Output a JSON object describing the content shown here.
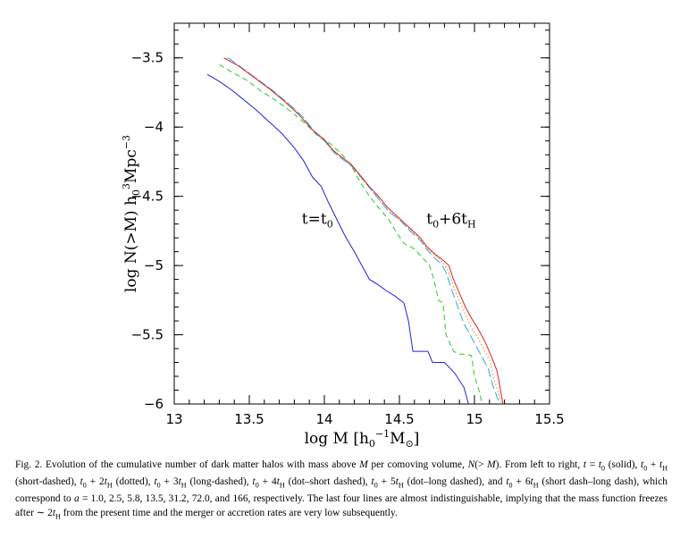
{
  "chart_data": {
    "type": "line",
    "xlabel": "log M [h0-1M⊙]",
    "ylabel": "log N(>M) h03Mpc-3",
    "xlim": [
      13,
      15.5
    ],
    "ylim": [
      -6,
      -3.25
    ],
    "x_ticks": [
      13,
      13.5,
      14,
      14.5,
      15,
      15.5
    ],
    "y_ticks": [
      -3.5,
      -4,
      -4.5,
      -5,
      -5.5,
      -6
    ],
    "x_tick_labels": [
      "13",
      "13.5",
      "14",
      "14.5",
      "15",
      "15.5"
    ],
    "y_tick_labels": [
      "−3.5",
      "−4",
      "−4.5",
      "−5",
      "−5.5",
      "−6"
    ],
    "grid": false,
    "annotations": [
      {
        "text": "t=t",
        "sub": "0",
        "at": [
          13.85,
          -4.7
        ]
      },
      {
        "text": "t",
        "sub": "0",
        "rest": "+6t",
        "sub2": "H",
        "at": [
          14.68,
          -4.7
        ]
      }
    ],
    "series": [
      {
        "color": "#2222dd",
        "style": "solid",
        "points": [
          [
            13.22,
            -3.62
          ],
          [
            13.3,
            -3.67
          ],
          [
            13.38,
            -3.73
          ],
          [
            13.46,
            -3.8
          ],
          [
            13.55,
            -3.88
          ],
          [
            13.64,
            -3.97
          ],
          [
            13.72,
            -4.05
          ],
          [
            13.8,
            -4.15
          ],
          [
            13.86,
            -4.24
          ],
          [
            13.92,
            -4.36
          ],
          [
            13.98,
            -4.43
          ],
          [
            14.03,
            -4.55
          ],
          [
            14.08,
            -4.66
          ],
          [
            14.14,
            -4.79
          ],
          [
            14.2,
            -4.9
          ],
          [
            14.26,
            -5.02
          ],
          [
            14.3,
            -5.1
          ],
          [
            14.36,
            -5.14
          ],
          [
            14.41,
            -5.18
          ],
          [
            14.47,
            -5.22
          ],
          [
            14.53,
            -5.27
          ],
          [
            14.56,
            -5.4
          ],
          [
            14.59,
            -5.62
          ],
          [
            14.65,
            -5.62
          ],
          [
            14.69,
            -5.62
          ],
          [
            14.72,
            -5.7
          ],
          [
            14.8,
            -5.7
          ],
          [
            14.87,
            -5.78
          ],
          [
            14.93,
            -5.88
          ],
          [
            14.96,
            -6.0
          ]
        ]
      },
      {
        "color": "#22cc22",
        "style": "short-dashed",
        "points": [
          [
            13.3,
            -3.55
          ],
          [
            13.38,
            -3.6
          ],
          [
            13.48,
            -3.66
          ],
          [
            13.58,
            -3.74
          ],
          [
            13.68,
            -3.81
          ],
          [
            13.78,
            -3.89
          ],
          [
            13.88,
            -3.98
          ],
          [
            13.96,
            -4.07
          ],
          [
            14.04,
            -4.12
          ],
          [
            14.12,
            -4.2
          ],
          [
            14.18,
            -4.28
          ],
          [
            14.24,
            -4.4
          ],
          [
            14.3,
            -4.5
          ],
          [
            14.36,
            -4.58
          ],
          [
            14.43,
            -4.67
          ],
          [
            14.48,
            -4.76
          ],
          [
            14.53,
            -4.84
          ],
          [
            14.6,
            -4.88
          ],
          [
            14.66,
            -4.95
          ],
          [
            14.7,
            -5.0
          ],
          [
            14.73,
            -5.1
          ],
          [
            14.76,
            -5.25
          ],
          [
            14.79,
            -5.27
          ],
          [
            14.81,
            -5.5
          ],
          [
            14.86,
            -5.62
          ],
          [
            14.9,
            -5.64
          ],
          [
            14.94,
            -5.64
          ],
          [
            14.98,
            -5.65
          ],
          [
            15.0,
            -5.8
          ],
          [
            15.03,
            -5.9
          ],
          [
            15.05,
            -6.0
          ]
        ]
      },
      {
        "color": "#ee8800",
        "style": "dotted",
        "points": [
          [
            13.35,
            -3.5
          ],
          [
            13.45,
            -3.57
          ],
          [
            13.55,
            -3.65
          ],
          [
            13.65,
            -3.73
          ],
          [
            13.75,
            -3.82
          ],
          [
            13.85,
            -3.92
          ],
          [
            13.93,
            -4.03
          ],
          [
            14.0,
            -4.1
          ],
          [
            14.06,
            -4.18
          ],
          [
            14.12,
            -4.23
          ],
          [
            14.18,
            -4.28
          ],
          [
            14.24,
            -4.36
          ],
          [
            14.3,
            -4.44
          ],
          [
            14.36,
            -4.52
          ],
          [
            14.42,
            -4.6
          ],
          [
            14.5,
            -4.67
          ],
          [
            14.58,
            -4.75
          ],
          [
            14.64,
            -4.81
          ],
          [
            14.68,
            -4.87
          ],
          [
            14.74,
            -4.93
          ],
          [
            14.79,
            -4.98
          ],
          [
            14.82,
            -5.03
          ],
          [
            14.86,
            -5.15
          ],
          [
            14.9,
            -5.26
          ],
          [
            14.95,
            -5.38
          ],
          [
            14.98,
            -5.45
          ],
          [
            15.02,
            -5.52
          ],
          [
            15.06,
            -5.6
          ],
          [
            15.1,
            -5.68
          ],
          [
            15.13,
            -5.82
          ],
          [
            15.16,
            -5.92
          ],
          [
            15.18,
            -6.0
          ]
        ]
      },
      {
        "color": "#22aaee",
        "style": "long-dashed",
        "points": [
          [
            13.36,
            -3.5
          ],
          [
            13.46,
            -3.58
          ],
          [
            13.56,
            -3.66
          ],
          [
            13.66,
            -3.74
          ],
          [
            13.76,
            -3.83
          ],
          [
            13.86,
            -3.93
          ],
          [
            13.94,
            -4.04
          ],
          [
            14.01,
            -4.11
          ],
          [
            14.07,
            -4.19
          ],
          [
            14.13,
            -4.24
          ],
          [
            14.19,
            -4.29
          ],
          [
            14.25,
            -4.37
          ],
          [
            14.31,
            -4.45
          ],
          [
            14.37,
            -4.53
          ],
          [
            14.43,
            -4.61
          ],
          [
            14.51,
            -4.68
          ],
          [
            14.58,
            -4.76
          ],
          [
            14.64,
            -4.82
          ],
          [
            14.68,
            -4.88
          ],
          [
            14.73,
            -4.94
          ],
          [
            14.78,
            -4.99
          ],
          [
            14.81,
            -5.05
          ],
          [
            14.85,
            -5.18
          ],
          [
            14.89,
            -5.3
          ],
          [
            14.93,
            -5.42
          ],
          [
            14.97,
            -5.5
          ],
          [
            15.01,
            -5.58
          ],
          [
            15.05,
            -5.66
          ],
          [
            15.09,
            -5.74
          ],
          [
            15.12,
            -5.86
          ],
          [
            15.15,
            -5.95
          ],
          [
            15.17,
            -6.0
          ]
        ]
      },
      {
        "color": "#dd2222",
        "style": "solid",
        "points": [
          [
            13.33,
            -3.5
          ],
          [
            13.43,
            -3.56
          ],
          [
            13.53,
            -3.64
          ],
          [
            13.63,
            -3.72
          ],
          [
            13.73,
            -3.81
          ],
          [
            13.83,
            -3.91
          ],
          [
            13.92,
            -4.02
          ],
          [
            14.0,
            -4.09
          ],
          [
            14.06,
            -4.17
          ],
          [
            14.12,
            -4.22
          ],
          [
            14.18,
            -4.27
          ],
          [
            14.24,
            -4.35
          ],
          [
            14.3,
            -4.43
          ],
          [
            14.36,
            -4.5
          ],
          [
            14.42,
            -4.58
          ],
          [
            14.5,
            -4.66
          ],
          [
            14.58,
            -4.74
          ],
          [
            14.64,
            -4.8
          ],
          [
            14.68,
            -4.86
          ],
          [
            14.74,
            -4.92
          ],
          [
            14.8,
            -4.97
          ],
          [
            14.83,
            -5.0
          ],
          [
            14.86,
            -5.1
          ],
          [
            14.9,
            -5.2
          ],
          [
            14.94,
            -5.3
          ],
          [
            14.98,
            -5.38
          ],
          [
            15.02,
            -5.45
          ],
          [
            15.07,
            -5.55
          ],
          [
            15.11,
            -5.65
          ],
          [
            15.15,
            -5.76
          ],
          [
            15.17,
            -5.88
          ],
          [
            15.19,
            -6.0
          ]
        ]
      }
    ]
  },
  "caption": {
    "p1": "Fig. 2. Evolution of the cumulative number of dark matter halos with mass above ",
    "p2": "M",
    "p3": " per comoving volume, ",
    "p4": "N",
    "p5": "(> ",
    "p6": "M",
    "p7": "). From left to right, ",
    "p8": "t",
    "p9": " = ",
    "p10": "t",
    "p11": "0",
    "p12": " (solid), ",
    "p13": "t",
    "p14": "0",
    "p15": " + ",
    "p16": "t",
    "p17": "H",
    "p18": " (short-dashed), ",
    "p19": "t",
    "p20": "0",
    "p21": " + 2",
    "p22": "t",
    "p23": "H",
    "p24": " (dotted), ",
    "p25": "t",
    "p26": "0",
    "p27": " + 3",
    "p28": "t",
    "p29": "H",
    "p30": " (long-dashed), ",
    "p31": "t",
    "p32": "0",
    "p33": " + 4",
    "p34": "t",
    "p35": "H",
    "p36": " (dot–short dashed), ",
    "p37": "t",
    "p38": "0",
    "p39": " + 5",
    "p40": "t",
    "p41": "H",
    "p42": " (dot–long dashed), and ",
    "p43": "t",
    "p44": "0",
    "p45": " + 6",
    "p46": "t",
    "p47": "H",
    "p48": " (short dash–long dash), which correspond to ",
    "p49": "a",
    "p50": " = 1.0, 2.5, 5.8, 13.5, 31.2, 72.0, and 166, respectively. The last four lines are almost indistinguishable, implying that the mass function freezes after ∼ 2",
    "p51": "t",
    "p52": "H",
    "p53": " from the present time and the merger or accretion rates are very low subsequently."
  }
}
